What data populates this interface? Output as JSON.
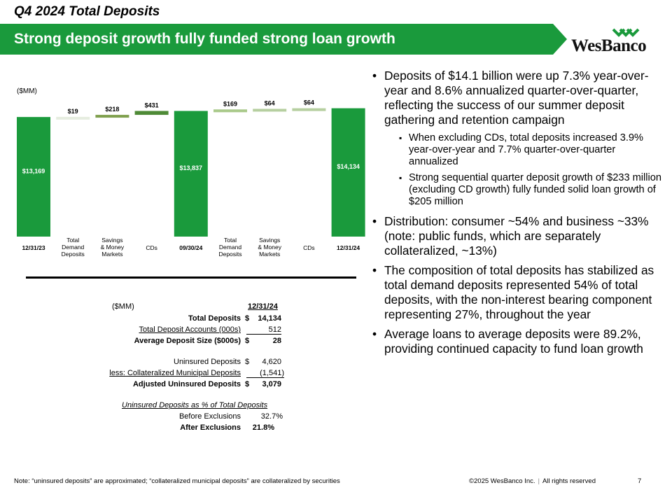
{
  "header": {
    "kicker": "Q4 2024 Total Deposits",
    "title": "Strong deposit growth fully funded strong loan growth",
    "banner_color": "#1a9a3c"
  },
  "logo": {
    "text": "WesBanco",
    "icon": "wesbanco-chevron-logo-icon"
  },
  "chart_data": {
    "type": "waterfall",
    "unit_label": "($MM)",
    "ylim": [
      0,
      14800
    ],
    "categories": [
      "12/31/23",
      "Total Demand Deposits",
      "Savings & Money Markets",
      "CDs",
      "09/30/24",
      "Total Demand Deposits",
      "Savings & Money Markets",
      "CDs",
      "12/31/24"
    ],
    "steps": [
      {
        "label": "12/31/23",
        "kind": "total",
        "value": 13169,
        "value_label": "$13,169"
      },
      {
        "label": "Total Demand Deposits",
        "kind": "delta",
        "value": 19,
        "value_label": "$19"
      },
      {
        "label": "Savings & Money Markets",
        "kind": "delta",
        "value": 218,
        "value_label": "$218"
      },
      {
        "label": "CDs",
        "kind": "delta",
        "value": 431,
        "value_label": "$431"
      },
      {
        "label": "09/30/24",
        "kind": "total",
        "value": 13837,
        "value_label": "$13,837"
      },
      {
        "label": "Total Demand Deposits",
        "kind": "delta",
        "value": 169,
        "value_label": "$169"
      },
      {
        "label": "Savings & Money Markets",
        "kind": "delta",
        "value": 64,
        "value_label": "$64"
      },
      {
        "label": "CDs",
        "kind": "delta",
        "value": 64,
        "value_label": "$64"
      },
      {
        "label": "12/31/24",
        "kind": "total",
        "value": 14134,
        "value_label": "$14,134"
      }
    ],
    "colors": {
      "total": "#1a9a3c",
      "delta_0": "#e6ede0",
      "delta_1": "#7fa04e",
      "delta_2": "#4e8a36",
      "delta_3": "#a9c98a",
      "delta_4": "#b6cfa0",
      "delta_5": "#b6cfa0"
    }
  },
  "table": {
    "unit": "($MM)",
    "date_header": "12/31/24",
    "total_deposits_label": "Total Deposits",
    "total_deposits_cur": "$",
    "total_deposits_val": "14,134",
    "accounts_label": "Total Deposit Accounts (000s)",
    "accounts_val": "512",
    "avg_size_label": "Average Deposit Size ($000s)",
    "avg_size_cur": "$",
    "avg_size_val": "28",
    "uninsured_label": "Uninsured Deposits",
    "uninsured_cur": "$",
    "uninsured_val": "4,620",
    "less_label": "less: Collateralized Municipal Deposits",
    "less_val": "(1,541)",
    "adjusted_label": "Adjusted Uninsured Deposits",
    "adjusted_cur": "$",
    "adjusted_val": "3,079",
    "pct_header": "Uninsured Deposits as % of Total Deposits",
    "before_label": "Before Exclusions",
    "before_val": "32.7%",
    "after_label": "After Exclusions",
    "after_val": "21.8%"
  },
  "bullets": {
    "b1": "Deposits of $14.1 billion were up 7.3% year-over-year and 8.6% annualized quarter-over-quarter, reflecting the success of our summer deposit gathering and retention campaign",
    "b1_sub1": "When excluding CDs, total deposits increased 3.9% year-over-year and 7.7% quarter-over-quarter annualized",
    "b1_sub2": "Strong sequential quarter deposit growth of $233 million (excluding CD growth) fully funded solid loan growth of $205 million",
    "b2": "Distribution: consumer ~54% and business ~33% (note: public funds, which are separately collateralized, ~13%)",
    "b3": "The composition of total deposits has stabilized as total demand deposits represented 54% of total deposits, with the non-interest bearing component representing 27%, throughout the year",
    "b4": "Average loans to average deposits were 89.2%, providing continued capacity to fund loan growth"
  },
  "footer": {
    "note": "Note: “uninsured deposits” are approximated; “collateralized municipal deposits” are collateralized by securities",
    "copyright": "©2025 WesBanco Inc.",
    "separator": "|",
    "rights": "All rights reserved",
    "page": "7"
  }
}
